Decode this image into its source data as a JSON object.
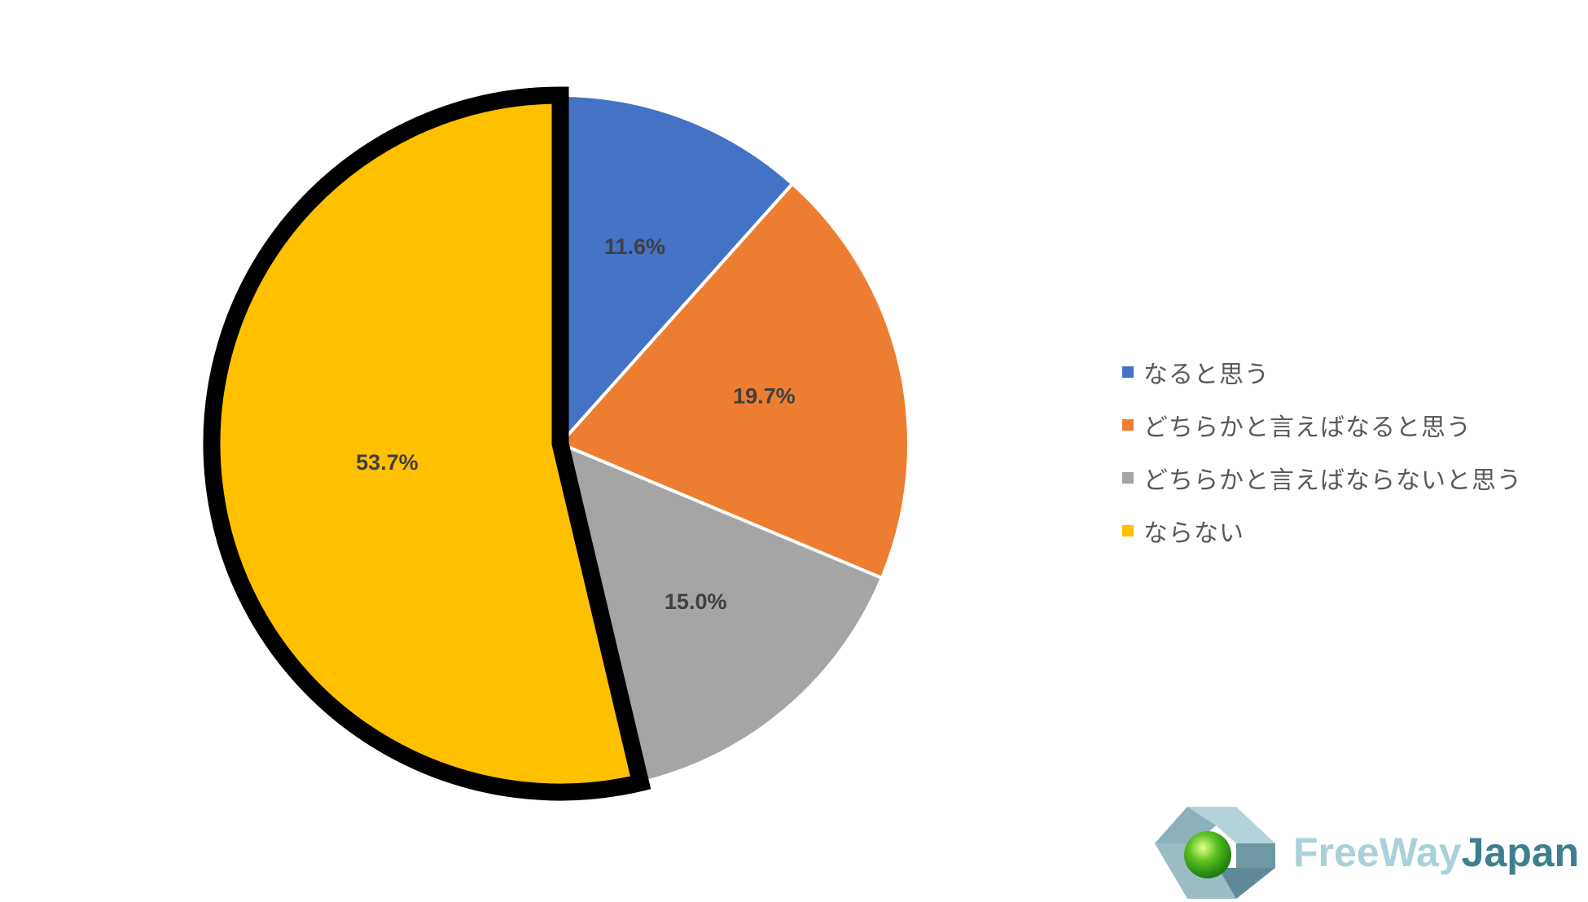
{
  "chart_data": {
    "type": "pie",
    "categories": [
      "なると思う",
      "どちらかと言えばなると思う",
      "どちらかと言えばならないと思う",
      "ならない"
    ],
    "values": [
      11.6,
      19.7,
      15.0,
      53.7
    ],
    "data_labels": [
      "11.6%",
      "19.7%",
      "15.0%",
      "53.7%"
    ],
    "colors": [
      "#4472c4",
      "#ed7d31",
      "#a5a5a5",
      "#ffc000"
    ],
    "highlighted_slice": "ならない",
    "legend_position": "right",
    "title": ""
  },
  "logo": {
    "text_part1": "FreeWay",
    "text_part2": "Japan",
    "icon": "freeway-japan-logo-icon"
  }
}
